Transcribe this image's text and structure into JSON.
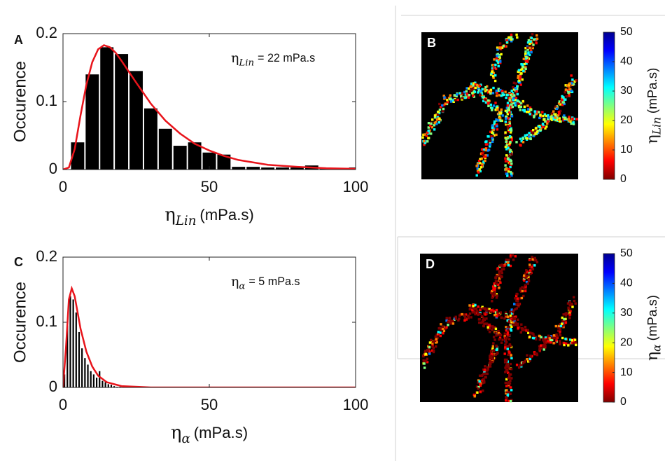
{
  "chart_data": [
    {
      "type": "histogram",
      "label": "A",
      "ylabel": "Occurence",
      "xlabel": {
        "symbol": "η",
        "subscript": "Lin",
        "unit": "(mPa.s)"
      },
      "annotation": {
        "symbol": "η",
        "subscript": "Lin",
        "text": "= 22 mPa.s"
      },
      "bins": [
        2.5,
        7.5,
        12.5,
        17.5,
        22.5,
        27.5,
        32.5,
        37.5,
        42.5,
        47.5,
        52.5,
        57.5,
        62.5,
        67.5,
        72.5,
        77.5,
        82.5,
        87.5,
        92.5,
        97.5,
        102.5
      ],
      "counts": [
        0.04,
        0.14,
        0.18,
        0.17,
        0.145,
        0.09,
        0.06,
        0.035,
        0.04,
        0.025,
        0.022,
        0.004,
        0.004,
        0.003,
        0.003,
        0.003,
        0.006,
        0.002,
        0.002,
        0.003
      ],
      "color": "#000000",
      "fit": {
        "color": "#e8141b",
        "x": [
          0,
          2,
          4,
          6,
          8,
          10,
          12,
          14,
          16,
          18,
          20,
          25,
          30,
          35,
          40,
          45,
          50,
          55,
          60,
          70,
          80,
          90,
          100
        ],
        "y": [
          0,
          0.003,
          0.03,
          0.08,
          0.125,
          0.158,
          0.177,
          0.183,
          0.18,
          0.172,
          0.16,
          0.128,
          0.097,
          0.072,
          0.053,
          0.038,
          0.028,
          0.02,
          0.014,
          0.007,
          0.004,
          0.002,
          0.001
        ]
      },
      "xlim": [
        0,
        100
      ],
      "xticks": [
        0,
        50,
        100
      ],
      "ylim": [
        0,
        0.2
      ],
      "yticks": [
        0,
        0.1,
        0.2
      ]
    },
    {
      "type": "histogram",
      "label": "C",
      "ylabel": "Occurence",
      "xlabel": {
        "symbol": "η",
        "subscript": "α",
        "unit": "(mPa.s)"
      },
      "annotation": {
        "symbol": "η",
        "subscript": "α",
        "text": "= 5 mPa.s"
      },
      "bins": [
        0,
        1,
        2,
        3,
        4,
        5,
        6,
        7,
        8,
        9,
        10,
        11,
        12,
        13,
        14,
        15,
        16,
        17,
        18,
        19,
        20
      ],
      "counts": [
        0.02,
        0.095,
        0.14,
        0.135,
        0.115,
        0.085,
        0.06,
        0.045,
        0.035,
        0.025,
        0.02,
        0.015,
        0.025,
        0.01,
        0.008,
        0.005,
        0.004,
        0.002,
        0.001,
        0.001
      ],
      "color": "#000000",
      "fit": {
        "color": "#e8141b",
        "x": [
          0,
          1,
          2,
          3,
          4,
          5,
          6,
          8,
          10,
          12,
          15,
          20,
          30,
          50,
          100
        ],
        "y": [
          0,
          0.06,
          0.135,
          0.152,
          0.14,
          0.115,
          0.09,
          0.055,
          0.032,
          0.018,
          0.008,
          0.002,
          0,
          0,
          0
        ]
      },
      "xlim": [
        0,
        100
      ],
      "xticks": [
        0,
        50,
        100
      ],
      "ylim": [
        0,
        0.2
      ],
      "yticks": [
        0,
        0.1,
        0.2
      ]
    },
    {
      "type": "heatmap",
      "label": "B",
      "colorbar_label": {
        "symbol": "η",
        "subscript": "Lin",
        "unit": "(mPa.s)"
      },
      "colormap": [
        "#800000",
        "#ff0000",
        "#ff8000",
        "#ffff00",
        "#80ff80",
        "#00ffff",
        "#0080ff",
        "#0000ff",
        "#00008f"
      ],
      "clim": [
        0,
        50
      ],
      "cticks": [
        0,
        10,
        20,
        30,
        40,
        50
      ]
    },
    {
      "type": "heatmap",
      "label": "D",
      "colorbar_label": {
        "symbol": "η",
        "subscript": "α",
        "unit": "(mPa.s)"
      },
      "colormap": [
        "#800000",
        "#ff0000",
        "#ff8000",
        "#ffff00",
        "#80ff80",
        "#00ffff",
        "#0080ff",
        "#0000ff",
        "#00008f"
      ],
      "clim": [
        0,
        50
      ],
      "cticks": [
        0,
        10,
        20,
        30,
        40,
        50
      ]
    }
  ]
}
